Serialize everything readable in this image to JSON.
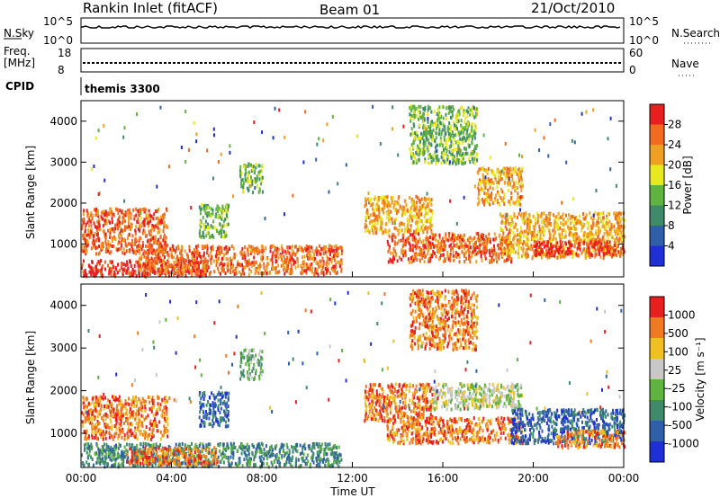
{
  "header": {
    "station": "Rankin Inlet (fitACF)",
    "beam": "Beam 01",
    "date": "21/Oct/2010"
  },
  "top_panels": {
    "nsky_label": "N.Sky",
    "nsky_ticks": [
      "10^5",
      "10^0"
    ],
    "nsearch_label": "N.Search",
    "nsearch_ticks": [
      "10^5",
      "10^0"
    ],
    "freq_label": "Freq.",
    "freq_unit": "[MHz]",
    "freq_ticks": [
      "18",
      "8"
    ],
    "nave_label": "Nave",
    "nave_ticks": [
      "60",
      "0"
    ],
    "cpid_label": "CPID",
    "cpid_value": "themis 3300"
  },
  "chart_data": [
    {
      "type": "heatmap",
      "name": "power-panel",
      "ylabel": "Slant Range [km]",
      "yticks": [
        "1000",
        "2000",
        "3000",
        "4000"
      ],
      "ylim": [
        200,
        4500
      ],
      "colorbar_label": "Power [dB]",
      "colorbar_ticks": [
        "4",
        "8",
        "12",
        "16",
        "20",
        "24",
        "28"
      ],
      "colorbar_range": [
        0,
        32
      ],
      "colors": [
        "#1f2fd8",
        "#2f5fa8",
        "#3f8a6a",
        "#5fb33f",
        "#e8e81f",
        "#f0a020",
        "#f06a1f",
        "#e81f1f"
      ],
      "regions": [
        {
          "t": [
            0.0,
            3.8
          ],
          "r": [
            800,
            1900
          ],
          "level": 6
        },
        {
          "t": [
            0.0,
            5.5
          ],
          "r": [
            250,
            650
          ],
          "level": 7
        },
        {
          "t": [
            2.5,
            11.5
          ],
          "r": [
            300,
            1000
          ],
          "level": 6
        },
        {
          "t": [
            5.2,
            6.5
          ],
          "r": [
            1200,
            2000
          ],
          "level": 3
        },
        {
          "t": [
            7.0,
            8.0
          ],
          "r": [
            2300,
            3000
          ],
          "level": 3
        },
        {
          "t": [
            12.5,
            15.5
          ],
          "r": [
            1300,
            2200
          ],
          "level": 5
        },
        {
          "t": [
            13.5,
            19.0
          ],
          "r": [
            600,
            1300
          ],
          "level": 6
        },
        {
          "t": [
            17.5,
            19.5
          ],
          "r": [
            2000,
            2900
          ],
          "level": 5
        },
        {
          "t": [
            18.5,
            24.0
          ],
          "r": [
            700,
            1800
          ],
          "level": 5
        },
        {
          "t": [
            20.0,
            24.0
          ],
          "r": [
            750,
            1100
          ],
          "level": 7
        },
        {
          "t": [
            14.5,
            17.5
          ],
          "r": [
            3000,
            4400
          ],
          "level": 3
        }
      ]
    },
    {
      "type": "heatmap",
      "name": "velocity-panel",
      "ylabel": "Slant Range [km]",
      "yticks": [
        "1000",
        "2000",
        "3000",
        "4000"
      ],
      "ylim": [
        200,
        4500
      ],
      "xlabel": "Time UT",
      "xticks": [
        "00:00",
        "04:00",
        "08:00",
        "12:00",
        "16:00",
        "20:00",
        "00:00"
      ],
      "xlim": [
        0,
        24
      ],
      "colorbar_label": "Velocity [m s⁻¹]",
      "colorbar_ticks": [
        "1000",
        "500",
        "100",
        "25",
        "-25",
        "-100",
        "-500",
        "-1000"
      ],
      "colors": [
        "#1f2fd8",
        "#2f5fa8",
        "#3f8a6a",
        "#5fb33f",
        "#c8c8c8",
        "#f0c020",
        "#f07a1f",
        "#e81f1f"
      ],
      "regions": [
        {
          "t": [
            0.0,
            3.8
          ],
          "r": [
            900,
            1900
          ],
          "level": 6
        },
        {
          "t": [
            0.0,
            11.5
          ],
          "r": [
            250,
            800
          ],
          "level": 2
        },
        {
          "t": [
            2.0,
            6.0
          ],
          "r": [
            300,
            700
          ],
          "level": 6
        },
        {
          "t": [
            5.2,
            6.5
          ],
          "r": [
            1200,
            2000
          ],
          "level": 1
        },
        {
          "t": [
            7.0,
            8.0
          ],
          "r": [
            2300,
            3000
          ],
          "level": 3
        },
        {
          "t": [
            12.5,
            15.5
          ],
          "r": [
            1300,
            2200
          ],
          "level": 6
        },
        {
          "t": [
            13.5,
            19.5
          ],
          "r": [
            800,
            1400
          ],
          "level": 6
        },
        {
          "t": [
            15.5,
            19.5
          ],
          "r": [
            1600,
            2200
          ],
          "level": 4
        },
        {
          "t": [
            19.0,
            24.0
          ],
          "r": [
            800,
            1600
          ],
          "level": 1
        },
        {
          "t": [
            21.0,
            24.0
          ],
          "r": [
            700,
            1100
          ],
          "level": 6
        },
        {
          "t": [
            14.5,
            17.5
          ],
          "r": [
            3000,
            4400
          ],
          "level": 6
        }
      ]
    }
  ]
}
